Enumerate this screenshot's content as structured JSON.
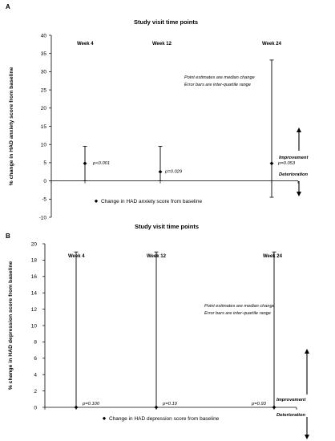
{
  "chart_data": [
    {
      "panel": "A",
      "type": "scatter",
      "title": "Study visit time points",
      "ylabel": "% change in HAD anxiety score from baseline",
      "ylim": [
        -10,
        40
      ],
      "yticks": [
        40,
        35,
        30,
        25,
        20,
        15,
        10,
        5,
        0,
        -5,
        -10
      ],
      "x": [
        "Week 4",
        "Week 12",
        "Week 24"
      ],
      "values": [
        4.8,
        2.5,
        4.8
      ],
      "errors": [
        [
          0,
          9.5
        ],
        [
          0,
          9.5
        ],
        [
          -4.5,
          33.2
        ]
      ],
      "pvalues": [
        "p<0.001",
        "p=0.029",
        "p=0.053"
      ],
      "notes": [
        "Point estimates are median change",
        "Error bars are inter-quartile range"
      ],
      "improvement_label": "Improvement",
      "deterioration_label": "Deterioration",
      "legend": "Change in HAD anxiety score from baseline"
    },
    {
      "panel": "B",
      "type": "scatter",
      "title": "Study visit time points",
      "ylabel": "% change in HAD depression score from baseline",
      "ylim": [
        0,
        20
      ],
      "yticks": [
        20,
        18,
        16,
        14,
        12,
        10,
        8,
        6,
        4,
        2,
        0
      ],
      "x": [
        "Week 4",
        "Week 12",
        "Week 24"
      ],
      "values": [
        0,
        0,
        0
      ],
      "errors": [
        [
          0,
          19
        ],
        [
          0,
          19
        ],
        [
          0,
          19
        ]
      ],
      "pvalues": [
        "p=0.100",
        "p=0.19",
        "p=0.93"
      ],
      "notes": [
        "Point estimates are median change",
        "Error bars are inter-quartile range"
      ],
      "improvement_label": "Improvement",
      "deterioration_label": "Deterioration",
      "legend": "Change in HAD depression score from baseline"
    }
  ]
}
